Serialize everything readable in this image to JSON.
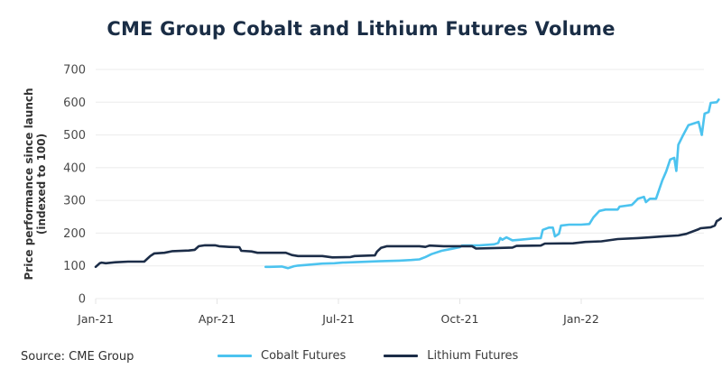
{
  "chart_data": {
    "type": "line",
    "title": "CME Group Cobalt and Lithium Futures Volume",
    "xlabel": "",
    "ylabel": "Price performance since launch (indexed to 100)",
    "ylabel_lines": [
      "Price performance since launch",
      "(indexed to 100)"
    ],
    "ylim": [
      0,
      700
    ],
    "yticks": [
      0,
      100,
      200,
      300,
      400,
      500,
      600,
      700
    ],
    "x_unit": "months since Jan-21",
    "xlim": [
      0,
      15.0
    ],
    "xticks": [
      {
        "pos": 0,
        "label": "Jan-21"
      },
      {
        "pos": 3,
        "label": "Apr-21"
      },
      {
        "pos": 6,
        "label": "Jul-21"
      },
      {
        "pos": 9,
        "label": "Oct-21"
      },
      {
        "pos": 12,
        "label": "Jan-22"
      }
    ],
    "grid": true,
    "legend_position": "bottom",
    "series": [
      {
        "name": "Cobalt Futures",
        "color": "#4cc3ef",
        "points": [
          [
            4.2,
            97
          ],
          [
            4.3,
            97
          ],
          [
            4.6,
            98
          ],
          [
            4.75,
            93
          ],
          [
            4.9,
            99
          ],
          [
            5.0,
            101
          ],
          [
            5.3,
            104
          ],
          [
            5.6,
            107
          ],
          [
            5.9,
            108
          ],
          [
            6.1,
            110
          ],
          [
            6.5,
            112
          ],
          [
            7.0,
            114
          ],
          [
            7.5,
            116
          ],
          [
            7.8,
            118
          ],
          [
            8.0,
            120
          ],
          [
            8.15,
            127
          ],
          [
            8.3,
            136
          ],
          [
            8.55,
            146
          ],
          [
            8.8,
            152
          ],
          [
            9.0,
            157
          ],
          [
            9.05,
            162
          ],
          [
            9.5,
            163
          ],
          [
            9.85,
            166
          ],
          [
            9.95,
            170
          ],
          [
            10.0,
            185
          ],
          [
            10.05,
            180
          ],
          [
            10.15,
            187
          ],
          [
            10.3,
            178
          ],
          [
            10.5,
            180
          ],
          [
            10.85,
            184
          ],
          [
            11.0,
            185
          ],
          [
            11.05,
            210
          ],
          [
            11.2,
            217
          ],
          [
            11.3,
            217
          ],
          [
            11.35,
            190
          ],
          [
            11.45,
            198
          ],
          [
            11.5,
            223
          ],
          [
            11.7,
            226
          ],
          [
            12.0,
            226
          ],
          [
            12.2,
            228
          ],
          [
            12.3,
            248
          ],
          [
            12.45,
            268
          ],
          [
            12.6,
            272
          ],
          [
            12.9,
            272
          ],
          [
            12.95,
            281
          ],
          [
            13.25,
            286
          ],
          [
            13.3,
            292
          ],
          [
            13.4,
            305
          ],
          [
            13.55,
            311
          ],
          [
            13.6,
            295
          ],
          [
            13.7,
            305
          ],
          [
            13.85,
            305
          ],
          [
            14.0,
            360
          ],
          [
            14.1,
            388
          ],
          [
            14.2,
            425
          ],
          [
            14.3,
            430
          ],
          [
            14.35,
            390
          ],
          [
            14.4,
            470
          ],
          [
            14.5,
            495
          ],
          [
            14.65,
            530
          ],
          [
            14.9,
            540
          ],
          [
            14.98,
            500
          ],
          [
            15.05,
            565
          ],
          [
            15.15,
            570
          ],
          [
            15.2,
            598
          ],
          [
            15.35,
            600
          ],
          [
            15.4,
            608
          ]
        ]
      },
      {
        "name": "Lithium Futures",
        "color": "#1c2d48",
        "points": [
          [
            0,
            97
          ],
          [
            0.1,
            108
          ],
          [
            0.15,
            110
          ],
          [
            0.25,
            108
          ],
          [
            0.5,
            111
          ],
          [
            0.8,
            113
          ],
          [
            1.0,
            113
          ],
          [
            1.2,
            113
          ],
          [
            1.35,
            130
          ],
          [
            1.45,
            138
          ],
          [
            1.7,
            140
          ],
          [
            1.9,
            145
          ],
          [
            2.3,
            147
          ],
          [
            2.45,
            149
          ],
          [
            2.55,
            160
          ],
          [
            2.7,
            163
          ],
          [
            2.95,
            163
          ],
          [
            3.05,
            160
          ],
          [
            3.3,
            158
          ],
          [
            3.55,
            157
          ],
          [
            3.6,
            146
          ],
          [
            3.85,
            144
          ],
          [
            4.0,
            140
          ],
          [
            4.5,
            140
          ],
          [
            4.7,
            140
          ],
          [
            4.85,
            133
          ],
          [
            5.0,
            130
          ],
          [
            5.6,
            130
          ],
          [
            5.85,
            126
          ],
          [
            6.3,
            127
          ],
          [
            6.4,
            130
          ],
          [
            6.9,
            132
          ],
          [
            6.95,
            143
          ],
          [
            7.05,
            155
          ],
          [
            7.2,
            160
          ],
          [
            7.6,
            160
          ],
          [
            8.0,
            160
          ],
          [
            8.15,
            158
          ],
          [
            8.25,
            162
          ],
          [
            8.6,
            160
          ],
          [
            9.3,
            160
          ],
          [
            9.4,
            153
          ],
          [
            10.0,
            155
          ],
          [
            10.3,
            156
          ],
          [
            10.4,
            161
          ],
          [
            11.0,
            162
          ],
          [
            11.1,
            168
          ],
          [
            11.8,
            169
          ],
          [
            12.1,
            173
          ],
          [
            12.5,
            175
          ],
          [
            12.9,
            182
          ],
          [
            13.4,
            185
          ],
          [
            13.7,
            187
          ],
          [
            14.0,
            190
          ],
          [
            14.4,
            193
          ],
          [
            14.6,
            198
          ],
          [
            14.9,
            212
          ],
          [
            14.95,
            215
          ],
          [
            15.2,
            218
          ],
          [
            15.3,
            223
          ],
          [
            15.35,
            237
          ],
          [
            15.4,
            240
          ],
          [
            15.45,
            245
          ]
        ]
      }
    ]
  },
  "footer": {
    "source": "Source: CME Group"
  }
}
